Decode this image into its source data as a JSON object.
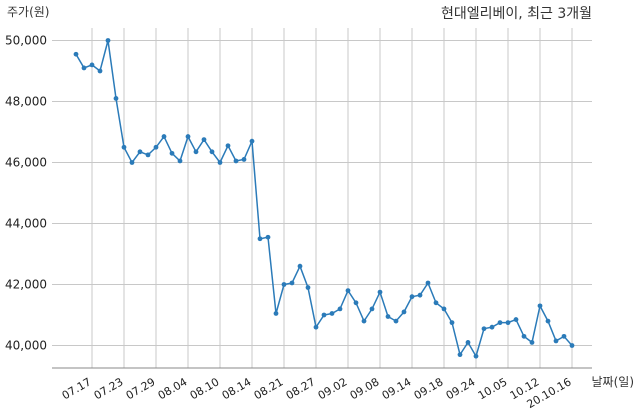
{
  "chart_data": {
    "type": "line",
    "title": "현대엘리베이, 최근 3개월",
    "ylabel": "주가(원)",
    "xlabel": "날짜(일)",
    "ylim": [
      39300,
      50200
    ],
    "yticks": [
      40000,
      42000,
      44000,
      46000,
      48000,
      50000
    ],
    "ytick_labels": [
      "40,000",
      "42,000",
      "44,000",
      "46,000",
      "48,000",
      "50,000"
    ],
    "grid": true,
    "series_color": "#2b7bb9",
    "x_tick_labels": [
      {
        "index": 2,
        "label": "07.17"
      },
      {
        "index": 6,
        "label": "07.23"
      },
      {
        "index": 10,
        "label": "07.29"
      },
      {
        "index": 14,
        "label": "08.04"
      },
      {
        "index": 18,
        "label": "08.10"
      },
      {
        "index": 22,
        "label": "08.14"
      },
      {
        "index": 26,
        "label": "08.21"
      },
      {
        "index": 30,
        "label": "08.27"
      },
      {
        "index": 34,
        "label": "09.02"
      },
      {
        "index": 38,
        "label": "09.08"
      },
      {
        "index": 42,
        "label": "09.14"
      },
      {
        "index": 46,
        "label": "09.18"
      },
      {
        "index": 50,
        "label": "09.24"
      },
      {
        "index": 54,
        "label": "10.05"
      },
      {
        "index": 58,
        "label": "10.12"
      },
      {
        "index": 62,
        "label": "20.10.16"
      }
    ],
    "values": [
      49550,
      49100,
      49200,
      49000,
      50000,
      48100,
      46500,
      46000,
      46350,
      46250,
      46500,
      46850,
      46300,
      46050,
      46850,
      46350,
      46750,
      46350,
      46000,
      46550,
      46050,
      46100,
      46700,
      43500,
      43550,
      41050,
      42000,
      42050,
      42600,
      41900,
      40600,
      41000,
      41050,
      41200,
      41800,
      41400,
      40800,
      41200,
      41750,
      40950,
      40800,
      41100,
      41600,
      41650,
      42050,
      41400,
      41200,
      40750,
      39700,
      40100,
      39650,
      40550,
      40600,
      40750,
      40750,
      40850,
      40300,
      40100,
      41300,
      40800,
      40150,
      40300,
      40000
    ]
  }
}
